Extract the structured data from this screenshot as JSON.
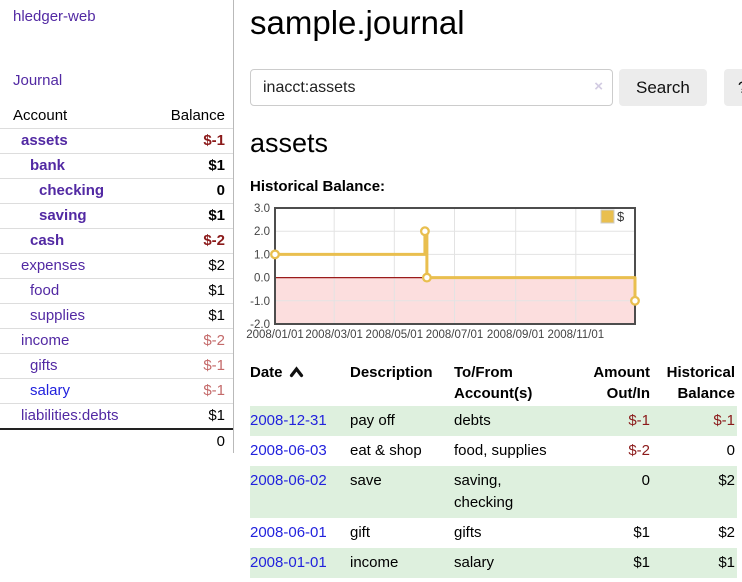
{
  "brand": "hledger-web",
  "nav": {
    "journal": "Journal"
  },
  "colors": {
    "link_visited": "#5229a3",
    "link_unvisited": "#2222dd",
    "negative_strong": "#8b1a1a",
    "negative_soft": "#c46a6a",
    "row_stripe_green": "#def0de",
    "chart_line_gold": "#e9bf4f",
    "chart_negative_fill": "#fcdede",
    "chart_zero_line": "#9a1b1b"
  },
  "sidebar": {
    "columns": {
      "account": "Account",
      "balance": "Balance"
    },
    "accounts": [
      {
        "name": "assets",
        "indent": 1,
        "balance": "$-1",
        "name_style": "visited",
        "bold": true,
        "balance_style": "neg-strong"
      },
      {
        "name": "bank",
        "indent": 2,
        "balance": "$1",
        "name_style": "visited",
        "bold": true,
        "balance_style": "strong"
      },
      {
        "name": "checking",
        "indent": 3,
        "balance": "0",
        "name_style": "visited",
        "bold": true,
        "balance_style": "strong"
      },
      {
        "name": "saving",
        "indent": 3,
        "balance": "$1",
        "name_style": "visited",
        "bold": true,
        "balance_style": "strong"
      },
      {
        "name": "cash",
        "indent": 2,
        "balance": "$-2",
        "name_style": "visited",
        "bold": true,
        "balance_style": "neg-strong"
      },
      {
        "name": "expenses",
        "indent": 1,
        "balance": "$2",
        "name_style": "visited",
        "bold": false,
        "balance_style": "plain"
      },
      {
        "name": "food",
        "indent": 2,
        "balance": "$1",
        "name_style": "visited",
        "bold": false,
        "balance_style": "plain"
      },
      {
        "name": "supplies",
        "indent": 2,
        "balance": "$1",
        "name_style": "visited",
        "bold": false,
        "balance_style": "plain"
      },
      {
        "name": "income",
        "indent": 1,
        "balance": "$-2",
        "name_style": "visited",
        "bold": false,
        "balance_style": "neg-soft"
      },
      {
        "name": "gifts",
        "indent": 2,
        "balance": "$-1",
        "name_style": "visited",
        "bold": false,
        "balance_style": "neg-soft"
      },
      {
        "name": "salary",
        "indent": 2,
        "balance": "$-1",
        "name_style": "unvisited",
        "bold": false,
        "balance_style": "neg-soft"
      },
      {
        "name": "liabilities:debts",
        "indent": 1,
        "balance": "$1",
        "name_style": "visited",
        "bold": false,
        "balance_style": "plain"
      }
    ],
    "total": "0"
  },
  "main": {
    "title": "sample.journal",
    "search": {
      "value": "inacct:assets",
      "clear_icon": "×",
      "search_button": "Search",
      "help_button": "?"
    },
    "account_heading": "assets",
    "chart_title": "Historical Balance:"
  },
  "chart_data": {
    "type": "line",
    "style": "step",
    "title": "Historical Balance",
    "legend": {
      "label": "$",
      "position": "top-right",
      "swatch_color": "#e9bf4f"
    },
    "line_color": "#e9bf4f",
    "negative_fill": "#fcdede",
    "zero_line_color": "#9a1b1b",
    "grid": true,
    "ylim": [
      -2,
      3
    ],
    "y_ticks": [
      3.0,
      2.0,
      1.0,
      0.0,
      -1.0,
      -2.0
    ],
    "x_range_days": [
      0,
      365
    ],
    "x_ticks": [
      {
        "label": "2008/01/01",
        "day": 0
      },
      {
        "label": "2008/03/01",
        "day": 60
      },
      {
        "label": "2008/05/01",
        "day": 121
      },
      {
        "label": "2008/07/01",
        "day": 182
      },
      {
        "label": "2008/09/01",
        "day": 244
      },
      {
        "label": "2008/11/01",
        "day": 305
      }
    ],
    "points": [
      {
        "date": "2008-01-01",
        "day": 0,
        "value": 1
      },
      {
        "date": "2008-06-01",
        "day": 152,
        "value": 2
      },
      {
        "date": "2008-06-03",
        "day": 154,
        "value": 0
      },
      {
        "date": "2008-12-31",
        "day": 365,
        "value": -1
      }
    ]
  },
  "register": {
    "columns": [
      {
        "lines": [
          "Date"
        ],
        "sort": "asc",
        "align": "left"
      },
      {
        "lines": [
          "Description"
        ],
        "align": "left"
      },
      {
        "lines": [
          "To/From",
          "Account(s)"
        ],
        "align": "left"
      },
      {
        "lines": [
          "Amount",
          "Out/In"
        ],
        "align": "right"
      },
      {
        "lines": [
          "Historical",
          "Balance"
        ],
        "align": "right"
      }
    ],
    "rows": [
      {
        "date": "2008-12-31",
        "description": "pay off",
        "accounts_lines": [
          "debts"
        ],
        "amount": "$-1",
        "amount_neg": true,
        "balance": "$-1",
        "balance_neg": true
      },
      {
        "date": "2008-06-03",
        "description": "eat & shop",
        "accounts_lines": [
          "food, supplies"
        ],
        "amount": "$-2",
        "amount_neg": true,
        "balance": "0",
        "balance_neg": false
      },
      {
        "date": "2008-06-02",
        "description": "save",
        "accounts_lines": [
          "saving,",
          "checking"
        ],
        "amount": "0",
        "amount_neg": false,
        "balance": "$2",
        "balance_neg": false
      },
      {
        "date": "2008-06-01",
        "description": "gift",
        "accounts_lines": [
          "gifts"
        ],
        "amount": "$1",
        "amount_neg": false,
        "balance": "$2",
        "balance_neg": false
      },
      {
        "date": "2008-01-01",
        "description": "income",
        "accounts_lines": [
          "salary"
        ],
        "amount": "$1",
        "amount_neg": false,
        "balance": "$1",
        "balance_neg": false
      }
    ]
  }
}
